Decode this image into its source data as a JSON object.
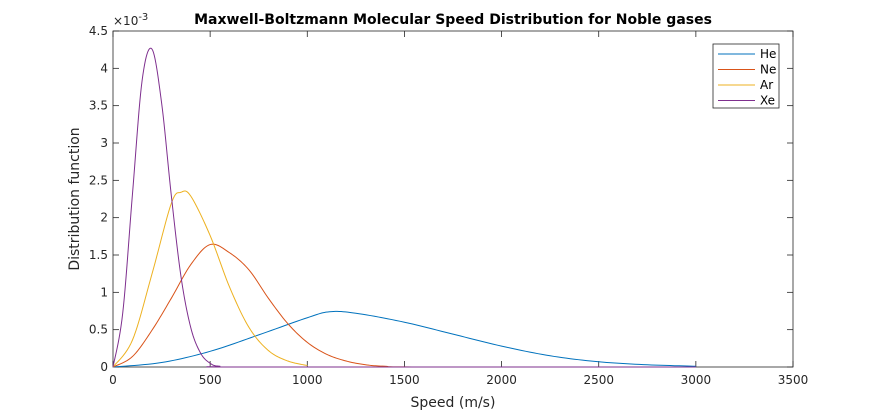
{
  "chart_data": {
    "type": "line",
    "title": "Maxwell-Boltzmann Molecular Speed Distribution for Noble gases",
    "xlabel": "Speed (m/s)",
    "ylabel": "Distribution function",
    "y_exponent_label": "×10",
    "y_exponent_power": "-3",
    "xlim": [
      0,
      3500
    ],
    "ylim": [
      0,
      4.5
    ],
    "y_scale_factor": 0.001,
    "xticks": [
      0,
      500,
      1000,
      1500,
      2000,
      2500,
      3000,
      3500
    ],
    "xtick_labels": [
      "0",
      "500",
      "1000",
      "1500",
      "2000",
      "2500",
      "3000",
      "3500"
    ],
    "yticks": [
      0,
      0.5,
      1,
      1.5,
      2,
      2.5,
      3,
      3.5,
      4,
      4.5
    ],
    "ytick_labels": [
      "0",
      "0.5",
      "1",
      "1.5",
      "2",
      "2.5",
      "3",
      "3.5",
      "4",
      "4.5"
    ],
    "grid": false,
    "legend_position": "top-right",
    "series": [
      {
        "name": "He",
        "color": "#0072BD",
        "x_max": 3000,
        "points": [
          [
            0,
            0
          ],
          [
            250,
            0.06
          ],
          [
            500,
            0.21
          ],
          [
            750,
            0.43
          ],
          [
            1000,
            0.66
          ],
          [
            1115,
            0.74
          ],
          [
            1250,
            0.72
          ],
          [
            1500,
            0.6
          ],
          [
            1750,
            0.44
          ],
          [
            2000,
            0.28
          ],
          [
            2250,
            0.15
          ],
          [
            2500,
            0.07
          ],
          [
            2750,
            0.03
          ],
          [
            3000,
            0.01
          ]
        ]
      },
      {
        "name": "Ne",
        "color": "#D95319",
        "x_max": 3000,
        "points": [
          [
            0,
            0
          ],
          [
            100,
            0.14
          ],
          [
            200,
            0.49
          ],
          [
            300,
            0.92
          ],
          [
            400,
            1.37
          ],
          [
            500,
            1.64
          ],
          [
            600,
            1.53
          ],
          [
            700,
            1.3
          ],
          [
            800,
            0.92
          ],
          [
            900,
            0.58
          ],
          [
            1000,
            0.33
          ],
          [
            1100,
            0.17
          ],
          [
            1200,
            0.08
          ],
          [
            1300,
            0.03
          ],
          [
            1400,
            0.01
          ],
          [
            1600,
            0
          ],
          [
            3000,
            0
          ]
        ]
      },
      {
        "name": "Ar",
        "color": "#EDB120",
        "x_max": 1000,
        "points": [
          [
            0,
            0
          ],
          [
            100,
            0.36
          ],
          [
            200,
            1.24
          ],
          [
            300,
            2.19
          ],
          [
            350,
            2.34
          ],
          [
            400,
            2.29
          ],
          [
            500,
            1.76
          ],
          [
            600,
            1.07
          ],
          [
            700,
            0.53
          ],
          [
            800,
            0.22
          ],
          [
            900,
            0.08
          ],
          [
            1000,
            0.02
          ]
        ]
      },
      {
        "name": "Xe",
        "color": "#7E2F8E",
        "x_max": 3000,
        "points": [
          [
            0,
            0
          ],
          [
            50,
            0.72
          ],
          [
            100,
            2.31
          ],
          [
            150,
            3.84
          ],
          [
            200,
            4.26
          ],
          [
            250,
            3.54
          ],
          [
            300,
            2.3
          ],
          [
            350,
            1.21
          ],
          [
            400,
            0.53
          ],
          [
            450,
            0.19
          ],
          [
            500,
            0.05
          ],
          [
            550,
            0.01
          ],
          [
            700,
            0
          ],
          [
            3000,
            0
          ]
        ]
      }
    ]
  }
}
